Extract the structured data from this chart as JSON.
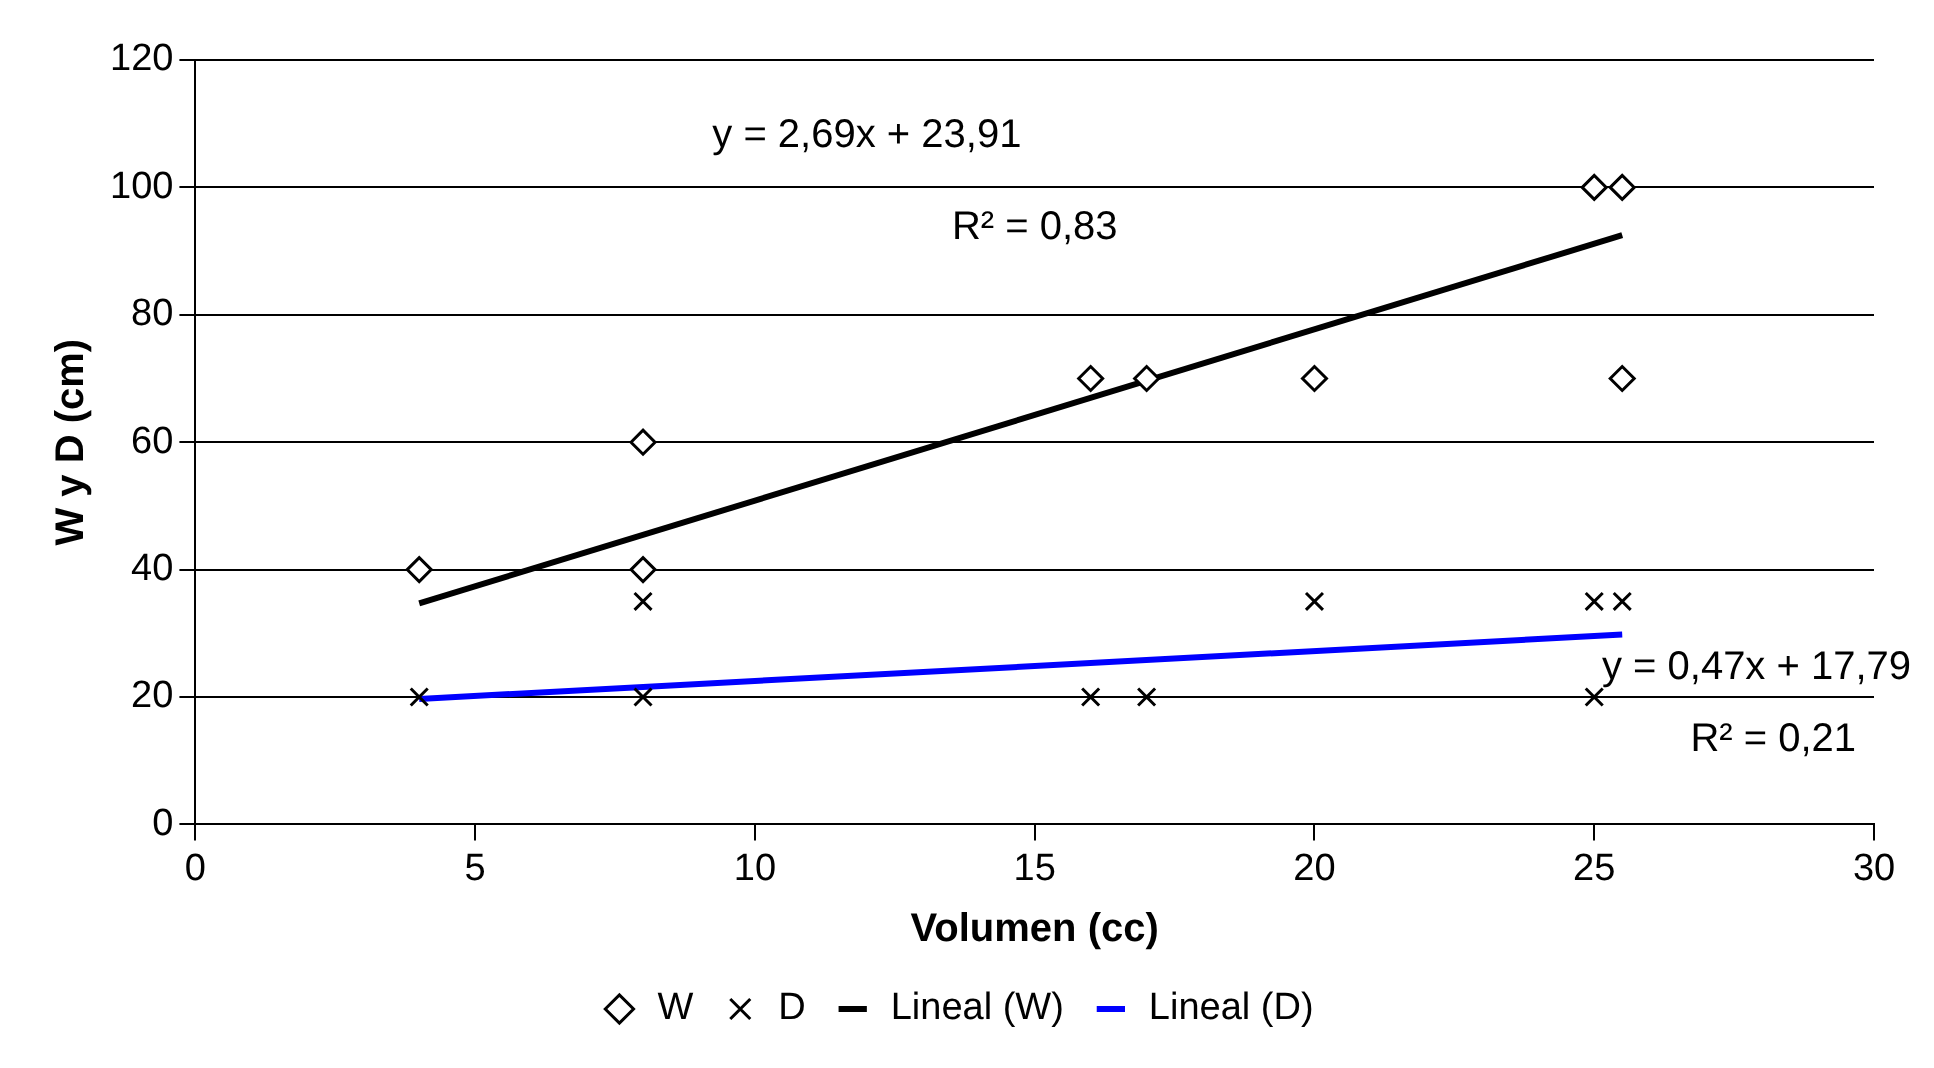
{
  "chart_data": {
    "type": "scatter",
    "xlabel": "Volumen (cc)",
    "ylabel": "W y D (cm)",
    "xlim": [
      0,
      30
    ],
    "xticks": [
      0,
      5,
      10,
      15,
      20,
      25,
      30
    ],
    "ylim": [
      0,
      120
    ],
    "yticks": [
      0,
      20,
      40,
      60,
      80,
      100,
      120
    ],
    "grid": "y",
    "legend": "bottom",
    "series": [
      {
        "name": "W",
        "color": "#000000",
        "marker": "diamond",
        "x": [
          4,
          8,
          8,
          16,
          17,
          20,
          25,
          25.5,
          25.5
        ],
        "values": [
          40,
          60,
          40,
          70,
          70,
          70,
          100,
          100,
          70
        ]
      },
      {
        "name": "D",
        "color": "#000000",
        "marker": "cross",
        "x": [
          4,
          8,
          8,
          16,
          17,
          20,
          25,
          25.5,
          25
        ],
        "values": [
          20,
          35,
          20,
          20,
          20,
          35,
          35,
          35,
          20
        ]
      },
      {
        "name": "Lineal (W)",
        "type": "line",
        "color": "#000000",
        "marker": "none",
        "x": [
          4,
          25.5
        ],
        "values": [
          34.7,
          92.5
        ]
      },
      {
        "name": "Lineal (D)",
        "type": "line",
        "color": "#0000ff",
        "marker": "none",
        "x": [
          4,
          25.5
        ],
        "values": [
          19.7,
          29.8
        ]
      }
    ],
    "annotations": [
      "y = 2,69x + 23,91",
      "R² = 0,83",
      "y = 0,47x + 17,79",
      "R² = 0,21"
    ]
  }
}
